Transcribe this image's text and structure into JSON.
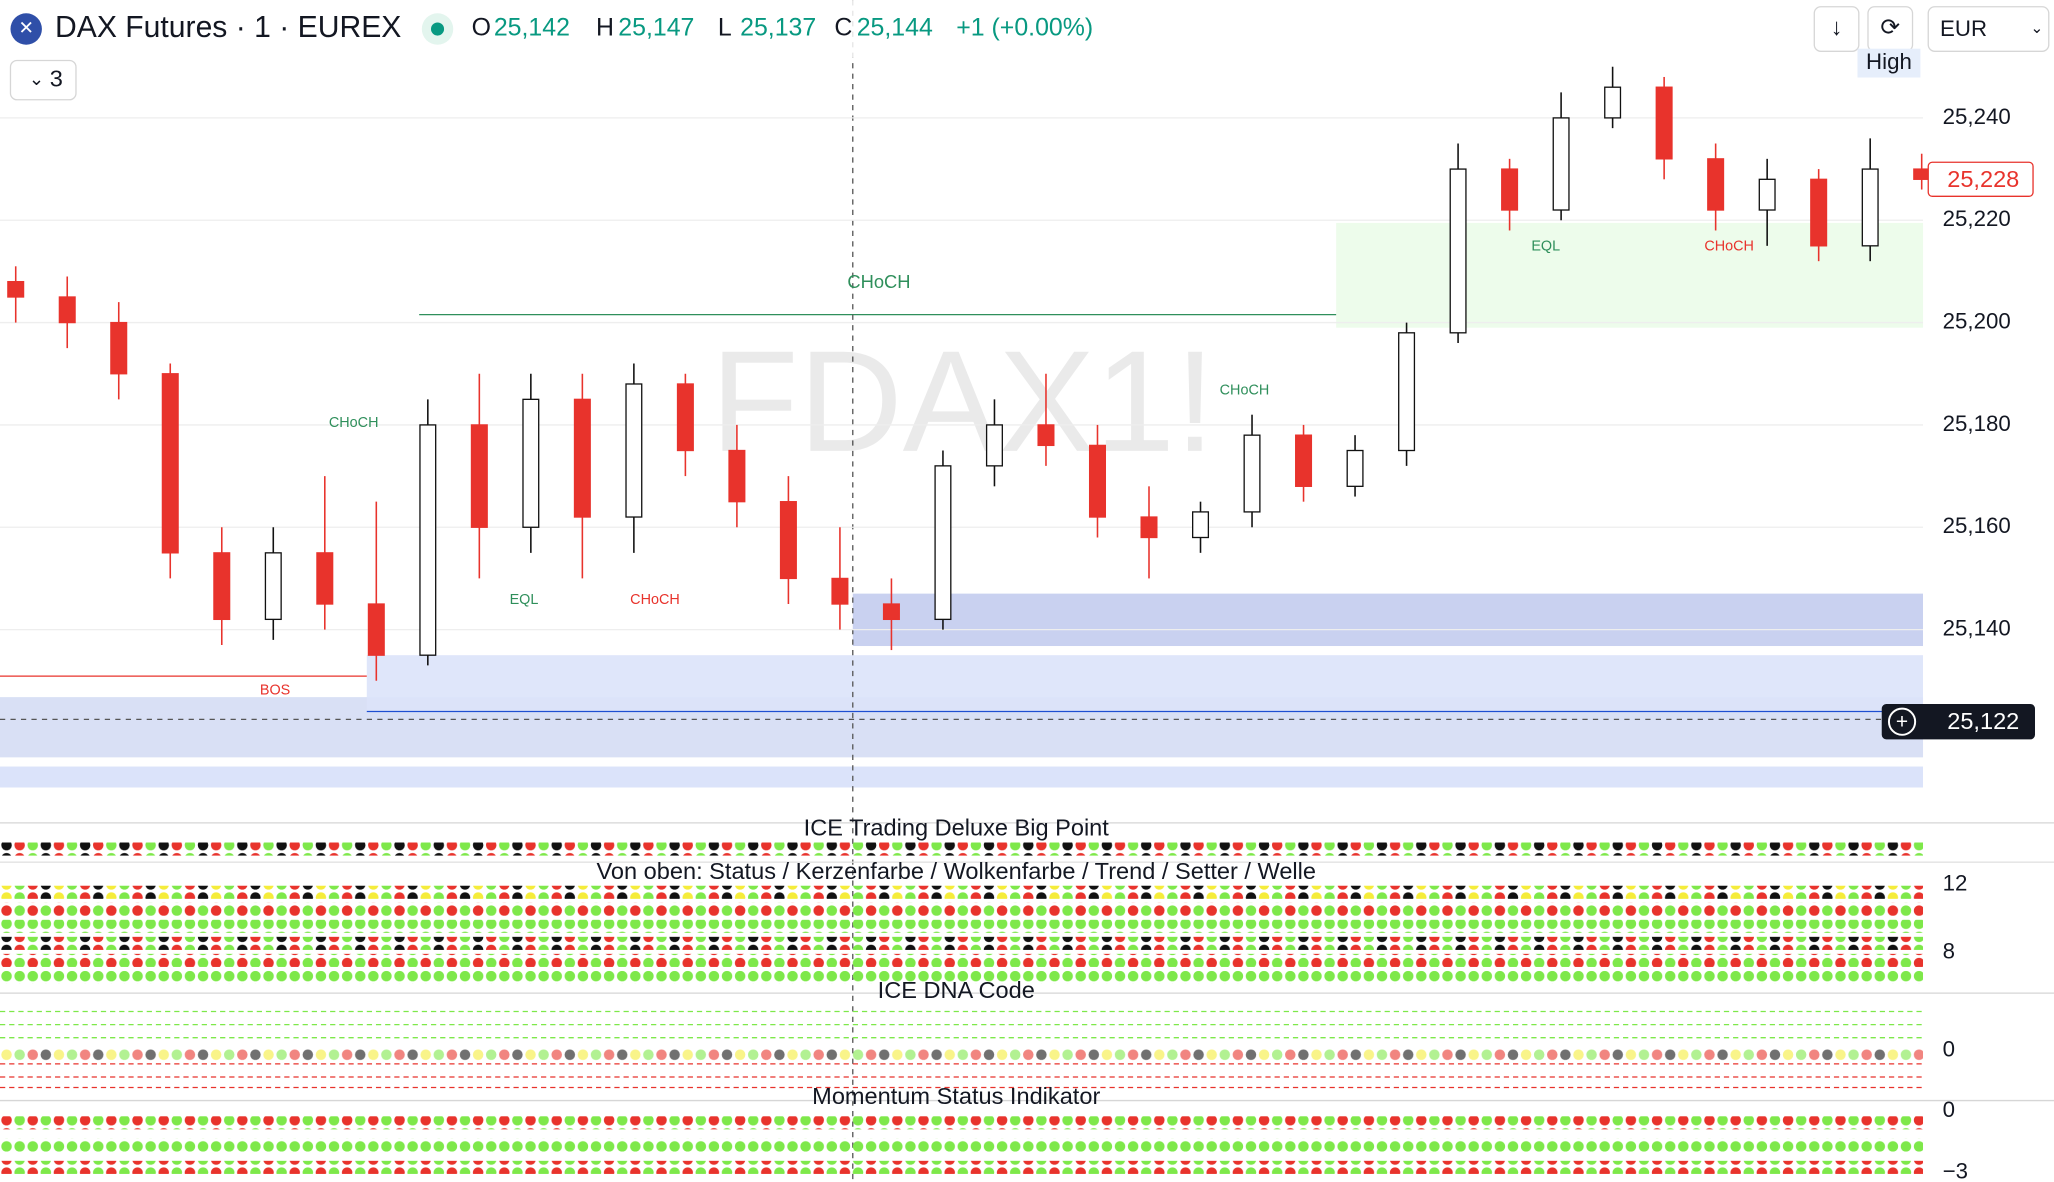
{
  "header": {
    "symbol": "DAX Futures · 1 · EUREX",
    "quote": [
      {
        "key": "O",
        "value": "25,142"
      },
      {
        "key": "H",
        "value": "25,147"
      },
      {
        "key": "L",
        "value": "25,137"
      },
      {
        "key": "C",
        "value": "25,144"
      }
    ],
    "change": "+1 (+0.00%)",
    "indicator_count": "3",
    "currency": "EUR",
    "high_label": "High"
  },
  "chart_data": {
    "type": "candlestick",
    "watermark": "FDAX1!",
    "ylim": [
      25103,
      25263
    ],
    "yticks": [
      {
        "value": 25140,
        "label": "25,140"
      },
      {
        "value": 25160,
        "label": "25,160"
      },
      {
        "value": 25180,
        "label": "25,180"
      },
      {
        "value": 25200,
        "label": "25,200"
      },
      {
        "value": 25220,
        "label": "25,220"
      },
      {
        "value": 25240,
        "label": "25,240"
      }
    ],
    "open": [
      25208,
      25205,
      25200,
      25190,
      25155,
      25142,
      25155,
      25145,
      25135,
      25180,
      25160,
      25185,
      25162,
      25188,
      25175,
      25165,
      25150,
      25145,
      25142,
      25172,
      25180,
      25176,
      25162,
      25158,
      25163,
      25178,
      25168,
      25175,
      25198,
      25230,
      25222,
      25240,
      25246,
      25232,
      25222,
      25228,
      25215,
      25230
    ],
    "high": [
      25211,
      25209,
      25204,
      25192,
      25160,
      25160,
      25170,
      25165,
      25185,
      25190,
      25190,
      25190,
      25192,
      25190,
      25180,
      25170,
      25160,
      25150,
      25175,
      25185,
      25190,
      25180,
      25168,
      25165,
      25182,
      25180,
      25178,
      25200,
      25235,
      25232,
      25245,
      25250,
      25248,
      25235,
      25232,
      25230,
      25236,
      25233
    ],
    "low": [
      25200,
      25195,
      25185,
      25150,
      25137,
      25138,
      25140,
      25130,
      25133,
      25150,
      25155,
      25150,
      25155,
      25170,
      25160,
      25145,
      25140,
      25136,
      25140,
      25168,
      25172,
      25158,
      25150,
      25155,
      25160,
      25165,
      25166,
      25172,
      25196,
      25218,
      25220,
      25238,
      25228,
      25218,
      25215,
      25212,
      25212,
      25226
    ],
    "close": [
      25205,
      25200,
      25190,
      25155,
      25142,
      25155,
      25145,
      25135,
      25180,
      25160,
      25185,
      25162,
      25188,
      25175,
      25165,
      25150,
      25145,
      25142,
      25172,
      25180,
      25176,
      25162,
      25158,
      25163,
      25178,
      25168,
      25175,
      25198,
      25230,
      25222,
      25240,
      25246,
      25232,
      25222,
      25228,
      25215,
      25230,
      25228
    ],
    "up_color": "#ffffff",
    "down_color": "#e8332c",
    "up_border": "#111111",
    "price_tags": [
      {
        "value": 25228,
        "label": "25,228",
        "color": "#e8332c"
      },
      {
        "value": 25122,
        "label": "25,122",
        "color": "#131722"
      }
    ],
    "annotations": [
      "CHoCH",
      "CHoCH",
      "CHoCH",
      "EQL",
      "CHoCH",
      "BOS",
      "EQL",
      "CHoCH"
    ]
  },
  "panes": [
    {
      "title": "ICE Trading Deluxe Big Point",
      "axis_labels": []
    },
    {
      "title": "Von oben: Status / Kerzenfarbe / Wolkenfarbe / Trend / Setter / Welle",
      "axis_labels": [
        "12",
        "8"
      ]
    },
    {
      "title": "ICE DNA Code",
      "axis_labels": [
        "0"
      ]
    },
    {
      "title": "Momentum Status Indikator",
      "axis_labels": [
        "0",
        "−3"
      ]
    }
  ]
}
